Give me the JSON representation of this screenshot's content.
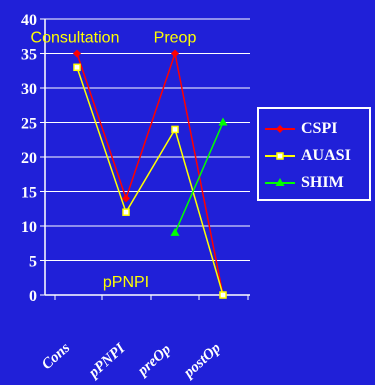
{
  "chart_data": {
    "type": "line",
    "categories": [
      "Cons",
      "pPNPI",
      "preOp",
      "postOp"
    ],
    "x_positions": [
      1,
      2,
      3,
      4
    ],
    "ylim": [
      0,
      40
    ],
    "yticks": [
      0,
      5,
      10,
      15,
      20,
      25,
      30,
      35,
      40
    ],
    "grid": true,
    "legend_placement": "right",
    "series": [
      {
        "name": "CSPI",
        "color": "#ff0000",
        "marker": "diamond",
        "points": [
          [
            1,
            35
          ],
          [
            2,
            14
          ],
          [
            3,
            35
          ],
          [
            4,
            0
          ]
        ]
      },
      {
        "name": "AUASI",
        "color": "#ffff00",
        "marker": "square",
        "points": [
          [
            1,
            33
          ],
          [
            2,
            12
          ],
          [
            3,
            24
          ],
          [
            4,
            0
          ]
        ]
      },
      {
        "name": "SHIM",
        "color": "#00ff00",
        "marker": "triangle",
        "points": [
          [
            3,
            9
          ],
          [
            4,
            25
          ]
        ]
      }
    ],
    "annotations": [
      {
        "text": "Consultation",
        "x": 1,
        "y": 37.5
      },
      {
        "text": "Preop",
        "x": 3,
        "y": 37.5
      },
      {
        "text": "pPNPI",
        "x": 2,
        "y": 2
      }
    ]
  }
}
